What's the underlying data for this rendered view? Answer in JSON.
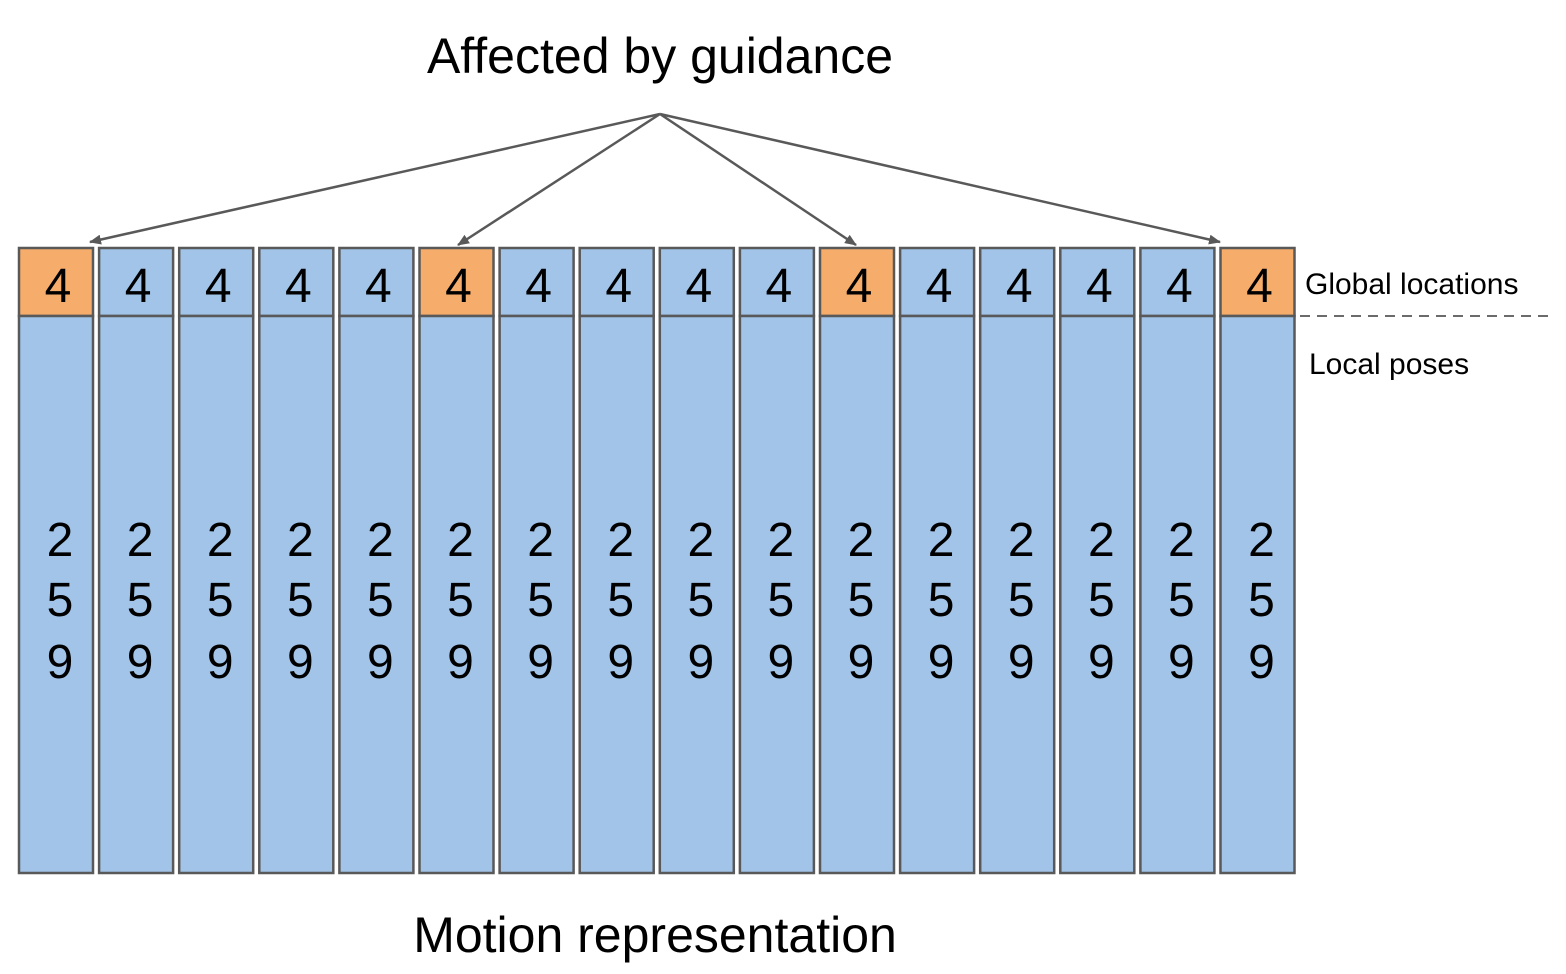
{
  "title_top": "Affected by guidance",
  "title_bottom": "Motion representation",
  "label_global": "Global locations",
  "label_local": "Local poses",
  "global_value": "4",
  "local_value_digits": [
    "2",
    "5",
    "9"
  ],
  "frame_count": 16,
  "guided_frames": [
    0,
    5,
    10,
    15
  ],
  "colors": {
    "guided": "#f6ad6b",
    "normal": "#a1c4e8",
    "stroke": "#595959",
    "arrow": "#595959",
    "divider": "#6b6b6b"
  }
}
